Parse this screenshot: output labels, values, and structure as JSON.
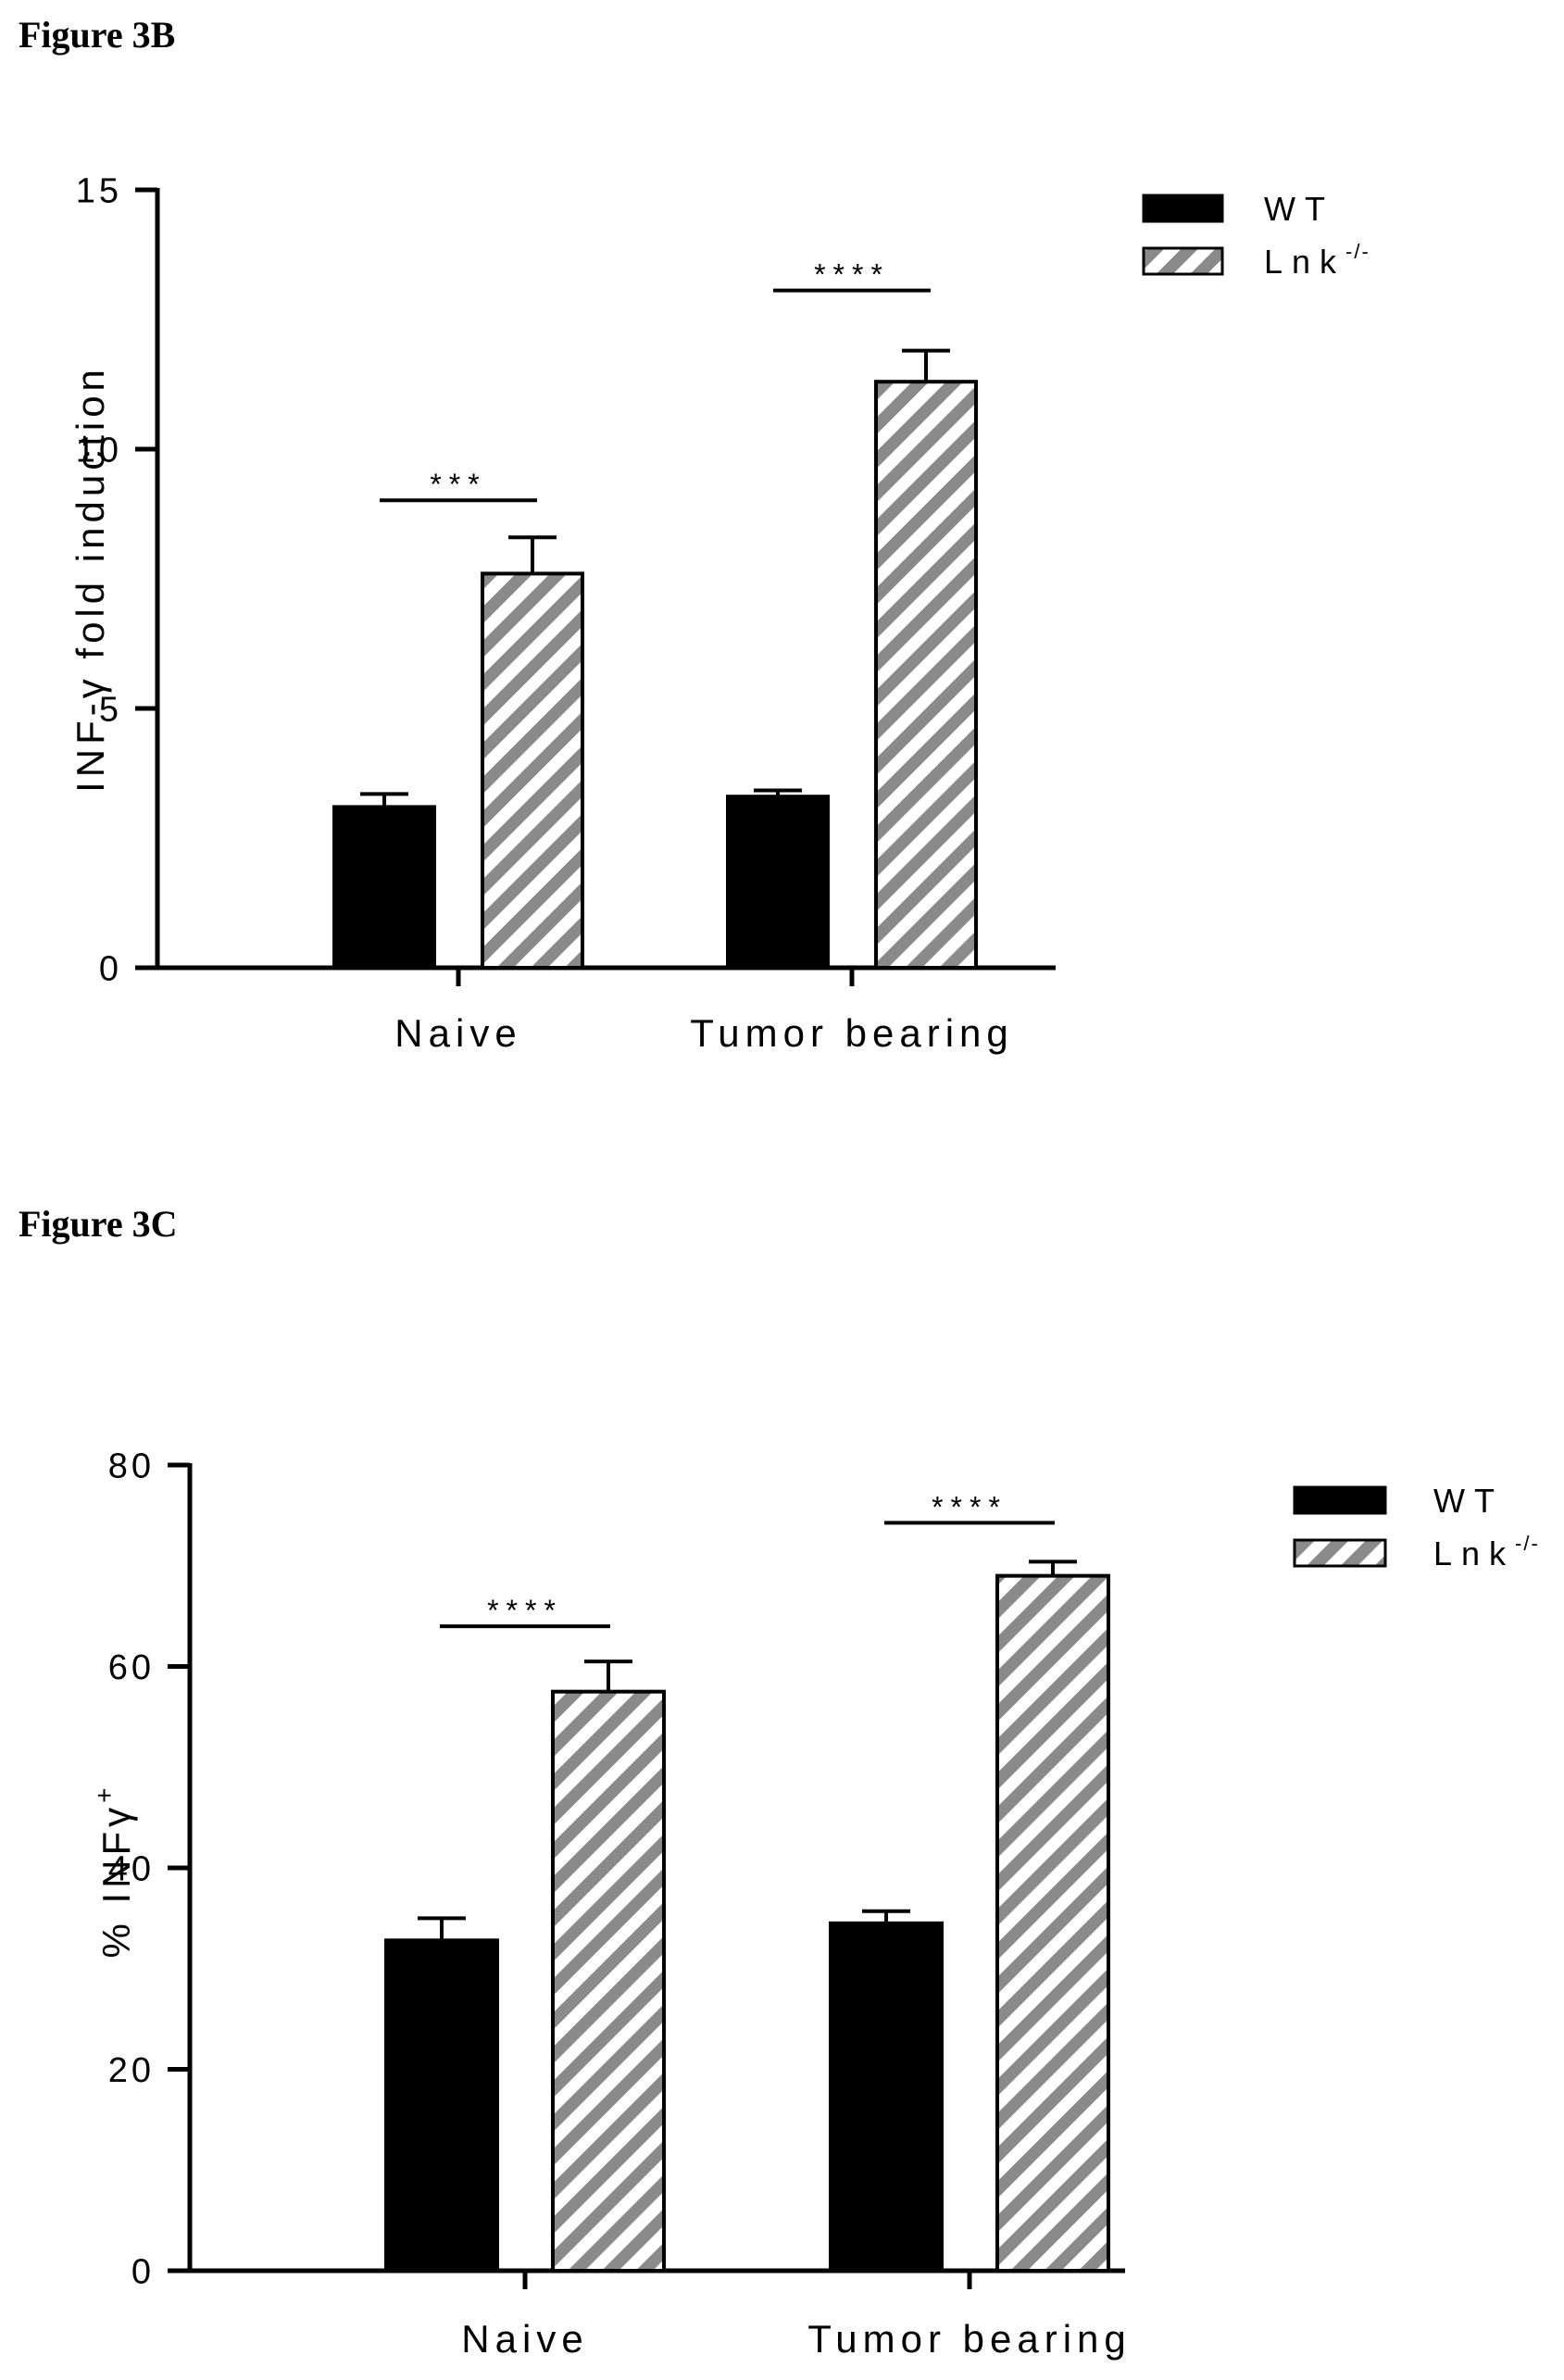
{
  "figure_labels": {
    "b": "Figure 3B",
    "c": "Figure 3C"
  },
  "colors": {
    "wt_fill": "#000000",
    "lnk_stripe": "#8a8a8a",
    "background": "#ffffff"
  },
  "chart_data": [
    {
      "type": "bar",
      "panel": "Figure 3B",
      "title": "",
      "ylabel": "INF-γ fold induction",
      "xlabel": "",
      "ylim": [
        0,
        15
      ],
      "yticks": [
        0,
        5,
        10,
        15
      ],
      "categories": [
        "Naive",
        "Tumor bearing"
      ],
      "series": [
        {
          "name": "WT",
          "pattern": "solid",
          "values": [
            3.1,
            3.3
          ],
          "errors": [
            0.25,
            0.12
          ]
        },
        {
          "name": "Lnk-/-",
          "pattern": "hatched",
          "values": [
            7.6,
            11.3
          ],
          "errors": [
            0.7,
            0.6
          ]
        }
      ],
      "legend": {
        "position": "top-right",
        "entries": [
          {
            "label": "WT",
            "sup": ""
          },
          {
            "label": "Lnk",
            "sup": "-/-"
          }
        ]
      },
      "significance": [
        "***",
        "****"
      ],
      "grid": false
    },
    {
      "type": "bar",
      "panel": "Figure 3C",
      "title": "",
      "ylabel": "% INFγ",
      "ylabel_sup": "+",
      "xlabel": "",
      "ylim": [
        0,
        80
      ],
      "yticks": [
        0,
        20,
        40,
        60,
        80
      ],
      "categories": [
        "Naive",
        "Tumor bearing"
      ],
      "series": [
        {
          "name": "WT",
          "pattern": "solid",
          "values": [
            32.8,
            34.5
          ],
          "errors": [
            2.2,
            1.2
          ]
        },
        {
          "name": "Lnk-/-",
          "pattern": "hatched",
          "values": [
            57.5,
            69.0
          ],
          "errors": [
            3.0,
            1.4
          ]
        }
      ],
      "legend": {
        "position": "top-right",
        "entries": [
          {
            "label": "WT",
            "sup": ""
          },
          {
            "label": "Lnk",
            "sup": "-/-"
          }
        ]
      },
      "significance": [
        "****",
        "****"
      ],
      "grid": false
    }
  ]
}
